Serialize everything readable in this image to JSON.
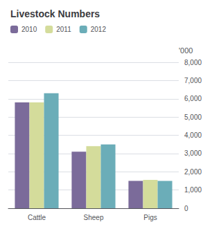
{
  "chart_data": {
    "type": "bar",
    "title": "Livestock Numbers",
    "ylabel": "'000",
    "categories": [
      "Cattle",
      "Sheep",
      "Pigs"
    ],
    "series": [
      {
        "name": "2010",
        "color": "#7B6B9A",
        "values": [
          5800,
          3100,
          1500
        ]
      },
      {
        "name": "2011",
        "color": "#D4DC9B",
        "values": [
          5800,
          3400,
          1550
        ]
      },
      {
        "name": "2012",
        "color": "#6BADB8",
        "values": [
          6300,
          3500,
          1500
        ]
      }
    ],
    "ylim": [
      0,
      8000
    ],
    "yticks": [
      0,
      {
        "value": 1000,
        "label": "1,000"
      },
      {
        "value": 2000,
        "label": "2,000"
      },
      {
        "value": 3000,
        "label": "3,000"
      },
      {
        "value": 4000,
        "label": "4,000"
      },
      {
        "value": 5000,
        "label": "5,000"
      },
      {
        "value": 6000,
        "label": "6,000"
      },
      {
        "value": 7000,
        "label": "7,000"
      },
      {
        "value": 8000,
        "label": "8,000"
      }
    ],
    "grid": true,
    "legend": "upper left"
  }
}
